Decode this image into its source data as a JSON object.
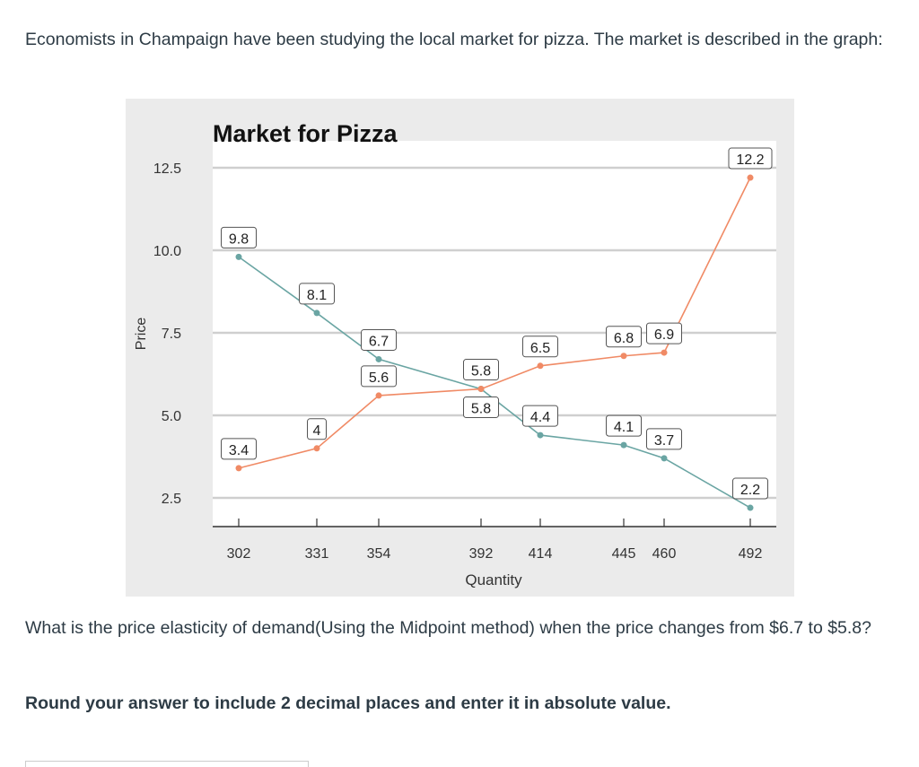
{
  "intro": "Economists in Champaign have been studying the local market for pizza. The market is described in the graph:",
  "question": "What is the price elasticity of demand(Using the Midpoint method) when the price changes from $6.7 to $5.8?",
  "instruction": "Round your answer to include 2 decimal places and enter it in absolute value.",
  "answer_value": "",
  "chart_data": {
    "type": "line",
    "title": "Market for Pizza",
    "xlabel": "Quantity",
    "ylabel": "Price",
    "x": [
      302,
      331,
      354,
      392,
      414,
      445,
      460,
      492
    ],
    "x_tick_labels": [
      "302",
      "331",
      "354",
      "392",
      "414",
      "445",
      "460",
      "492"
    ],
    "y_ticks": [
      "2.5",
      "5.0",
      "7.5",
      "10.0",
      "12.5"
    ],
    "grid": "horizontal",
    "series": [
      {
        "values": [
          9.8,
          8.1,
          6.7,
          5.8,
          4.4,
          4.1,
          3.7,
          2.2
        ],
        "labels": [
          "9.8",
          "8.1",
          "6.7",
          "5.8",
          "4.4",
          "4.1",
          "3.7",
          "2.2"
        ],
        "color": "#6aa5a3"
      },
      {
        "values": [
          3.4,
          4,
          5.6,
          5.8,
          6.5,
          6.8,
          6.9,
          12.2
        ],
        "labels": [
          "3.4",
          "4",
          "5.6",
          "5.8",
          "6.5",
          "6.8",
          "6.9",
          "12.2"
        ],
        "color": "#f08a65"
      }
    ]
  }
}
